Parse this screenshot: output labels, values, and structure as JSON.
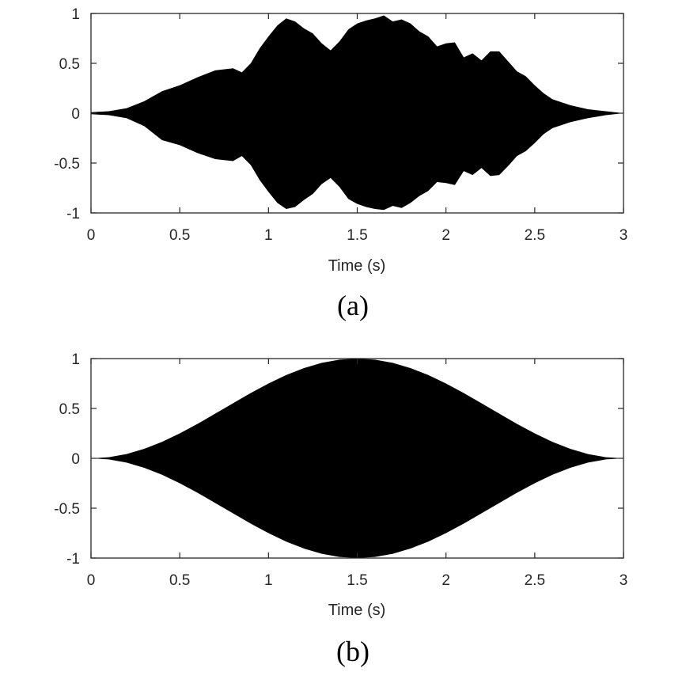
{
  "chart_data": [
    {
      "type": "area",
      "panel_label": "(a)",
      "xlabel": "Time (s)",
      "ylabel": "",
      "xlim": [
        0,
        3
      ],
      "ylim": [
        -1,
        1
      ],
      "xticks": [
        "0",
        "0.5",
        "1",
        "1.5",
        "2",
        "2.5",
        "3"
      ],
      "yticks": [
        "-1",
        "-0.5",
        "0",
        "0.5",
        "1"
      ],
      "grid": false,
      "fill_color": "#000000",
      "series": [
        {
          "values_description_free": true,
          "x": [
            0.0,
            0.1,
            0.2,
            0.3,
            0.4,
            0.5,
            0.6,
            0.7,
            0.8,
            0.85,
            0.9,
            0.95,
            1.0,
            1.05,
            1.1,
            1.15,
            1.2,
            1.25,
            1.3,
            1.35,
            1.4,
            1.45,
            1.5,
            1.55,
            1.6,
            1.65,
            1.7,
            1.75,
            1.8,
            1.85,
            1.9,
            1.95,
            2.0,
            2.05,
            2.1,
            2.15,
            2.2,
            2.25,
            2.3,
            2.35,
            2.4,
            2.45,
            2.5,
            2.55,
            2.6,
            2.7,
            2.8,
            2.9,
            3.0
          ],
          "upper": [
            0.01,
            0.02,
            0.05,
            0.12,
            0.22,
            0.28,
            0.36,
            0.43,
            0.45,
            0.41,
            0.5,
            0.65,
            0.77,
            0.88,
            0.95,
            0.92,
            0.85,
            0.8,
            0.7,
            0.63,
            0.72,
            0.84,
            0.9,
            0.93,
            0.95,
            0.98,
            0.92,
            0.94,
            0.9,
            0.82,
            0.77,
            0.67,
            0.7,
            0.71,
            0.56,
            0.6,
            0.53,
            0.62,
            0.62,
            0.52,
            0.42,
            0.37,
            0.28,
            0.2,
            0.14,
            0.08,
            0.04,
            0.02,
            0.0
          ],
          "lower": [
            -0.01,
            -0.02,
            -0.05,
            -0.13,
            -0.27,
            -0.32,
            -0.4,
            -0.46,
            -0.48,
            -0.43,
            -0.52,
            -0.67,
            -0.79,
            -0.9,
            -0.96,
            -0.94,
            -0.87,
            -0.81,
            -0.71,
            -0.65,
            -0.74,
            -0.86,
            -0.91,
            -0.94,
            -0.96,
            -0.97,
            -0.93,
            -0.95,
            -0.9,
            -0.83,
            -0.78,
            -0.69,
            -0.7,
            -0.72,
            -0.58,
            -0.62,
            -0.55,
            -0.63,
            -0.62,
            -0.53,
            -0.43,
            -0.38,
            -0.3,
            -0.21,
            -0.15,
            -0.09,
            -0.05,
            -0.02,
            0.0
          ]
        }
      ]
    },
    {
      "type": "area",
      "panel_label": "(b)",
      "xlabel": "Time (s)",
      "ylabel": "",
      "xlim": [
        0,
        3
      ],
      "ylim": [
        -1,
        1
      ],
      "xticks": [
        "0",
        "0.5",
        "1",
        "1.5",
        "2",
        "2.5",
        "3"
      ],
      "yticks": [
        "-1",
        "-0.5",
        "0",
        "0.5",
        "1"
      ],
      "grid": false,
      "fill_color": "#000000",
      "series": [
        {
          "x": [
            0.0,
            0.1,
            0.2,
            0.3,
            0.4,
            0.5,
            0.6,
            0.7,
            0.8,
            0.9,
            1.0,
            1.1,
            1.2,
            1.3,
            1.4,
            1.5,
            1.6,
            1.7,
            1.8,
            1.9,
            2.0,
            2.1,
            2.2,
            2.3,
            2.4,
            2.5,
            2.6,
            2.7,
            2.8,
            2.9,
            3.0
          ],
          "upper": [
            0.0,
            0.011,
            0.043,
            0.095,
            0.165,
            0.25,
            0.345,
            0.448,
            0.552,
            0.655,
            0.75,
            0.835,
            0.905,
            0.957,
            0.989,
            1.0,
            0.989,
            0.957,
            0.905,
            0.835,
            0.75,
            0.655,
            0.552,
            0.448,
            0.345,
            0.25,
            0.165,
            0.095,
            0.043,
            0.011,
            0.0
          ],
          "lower": [
            0.0,
            -0.011,
            -0.043,
            -0.095,
            -0.165,
            -0.25,
            -0.345,
            -0.448,
            -0.552,
            -0.655,
            -0.75,
            -0.835,
            -0.905,
            -0.957,
            -0.989,
            -1.0,
            -0.989,
            -0.957,
            -0.905,
            -0.835,
            -0.75,
            -0.655,
            -0.552,
            -0.448,
            -0.345,
            -0.25,
            -0.165,
            -0.095,
            -0.043,
            -0.011,
            0.0
          ]
        }
      ]
    }
  ]
}
